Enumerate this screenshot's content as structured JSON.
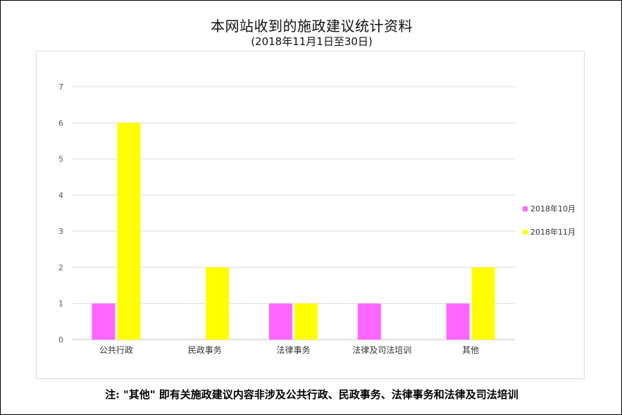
{
  "title": "本网站收到的施政建议统计资料",
  "subtitle": "(2018年11月1日至30日)",
  "note": "注: \"其他\" 即有关施政建议内容非涉及公共行政、民政事务、法律事务和法律及司法培训",
  "chart_data": {
    "type": "bar",
    "categories": [
      "公共行政",
      "民政事务",
      "法律事务",
      "法律及司法培训",
      "其他"
    ],
    "series": [
      {
        "name": "2018年10月",
        "values": [
          1,
          0,
          1,
          1,
          1
        ],
        "color": "#ff66ff"
      },
      {
        "name": "2018年11月",
        "values": [
          6,
          2,
          1,
          0,
          2
        ],
        "color": "#ffff00"
      }
    ],
    "ylim": [
      0,
      7
    ],
    "yticks": [
      0,
      1,
      2,
      3,
      4,
      5,
      6,
      7
    ],
    "grid": true,
    "legend": "right",
    "xlabel": "",
    "ylabel": ""
  }
}
